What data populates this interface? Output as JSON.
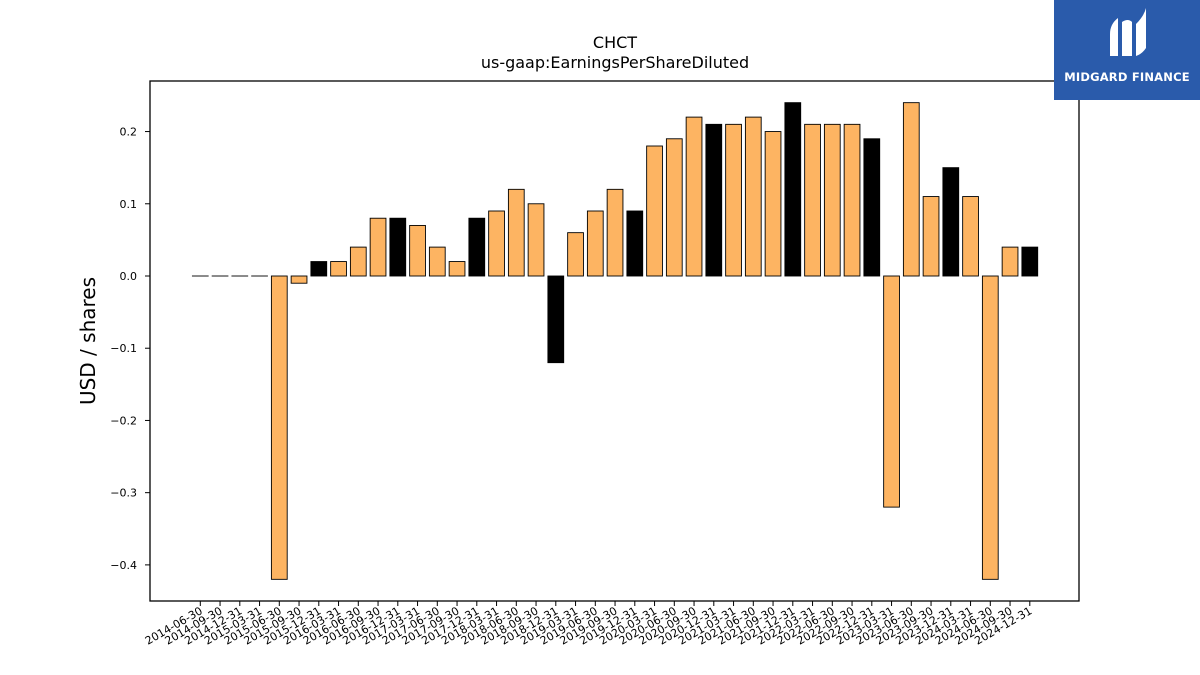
{
  "brand": {
    "name": "MIDGARD FINANCE",
    "color": "#2a5bab"
  },
  "chart_data": {
    "type": "bar",
    "title": "CHCT",
    "subtitle": "us-gaap:EarningsPerShareDiluted",
    "xlabel": "",
    "ylabel": "USD / shares",
    "ylim": [
      -0.45,
      0.27
    ],
    "yticks": [
      -0.4,
      -0.3,
      -0.2,
      -0.1,
      0.0,
      0.1,
      0.2
    ],
    "grid": false,
    "legend": "none",
    "colors": {
      "quarterly": "#fdb462",
      "annual": "#000000",
      "edge": "#000000"
    },
    "categories": [
      "2014-06-30",
      "2014-09-30",
      "2014-12-31",
      "2015-03-31",
      "2015-06-30",
      "2015-09-30",
      "2015-12-31",
      "2016-03-31",
      "2016-06-30",
      "2016-09-30",
      "2016-12-31",
      "2017-03-31",
      "2017-06-30",
      "2017-09-30",
      "2017-12-31",
      "2018-03-31",
      "2018-06-30",
      "2018-09-30",
      "2018-12-31",
      "2019-03-31",
      "2019-06-30",
      "2019-09-30",
      "2019-12-31",
      "2020-03-31",
      "2020-06-30",
      "2020-09-30",
      "2020-12-31",
      "2021-03-31",
      "2021-06-30",
      "2021-09-30",
      "2021-12-31",
      "2022-03-31",
      "2022-06-30",
      "2022-09-30",
      "2022-12-31",
      "2023-03-31",
      "2023-06-30",
      "2023-09-30",
      "2023-12-31",
      "2024-03-31",
      "2024-06-30",
      "2024-09-30",
      "2024-12-31"
    ],
    "values": [
      0,
      0,
      0,
      0,
      -0.42,
      -0.01,
      0.02,
      0.02,
      0.04,
      0.08,
      0.08,
      0.07,
      0.04,
      0.02,
      0.08,
      0.09,
      0.12,
      0.1,
      -0.12,
      0.06,
      0.09,
      0.12,
      0.09,
      0.18,
      0.19,
      0.22,
      0.21,
      0.21,
      0.22,
      0.2,
      0.24,
      0.21,
      0.21,
      0.21,
      0.19,
      -0.32,
      0.24,
      0.11,
      0.15,
      0.11,
      -0.42,
      0.04,
      0.04
    ],
    "annual": [
      false,
      false,
      false,
      false,
      false,
      false,
      true,
      false,
      false,
      false,
      true,
      false,
      false,
      false,
      true,
      false,
      false,
      false,
      true,
      false,
      false,
      false,
      true,
      false,
      false,
      false,
      true,
      false,
      false,
      false,
      true,
      false,
      false,
      false,
      true,
      false,
      false,
      false,
      true,
      false,
      false,
      false,
      true
    ]
  }
}
